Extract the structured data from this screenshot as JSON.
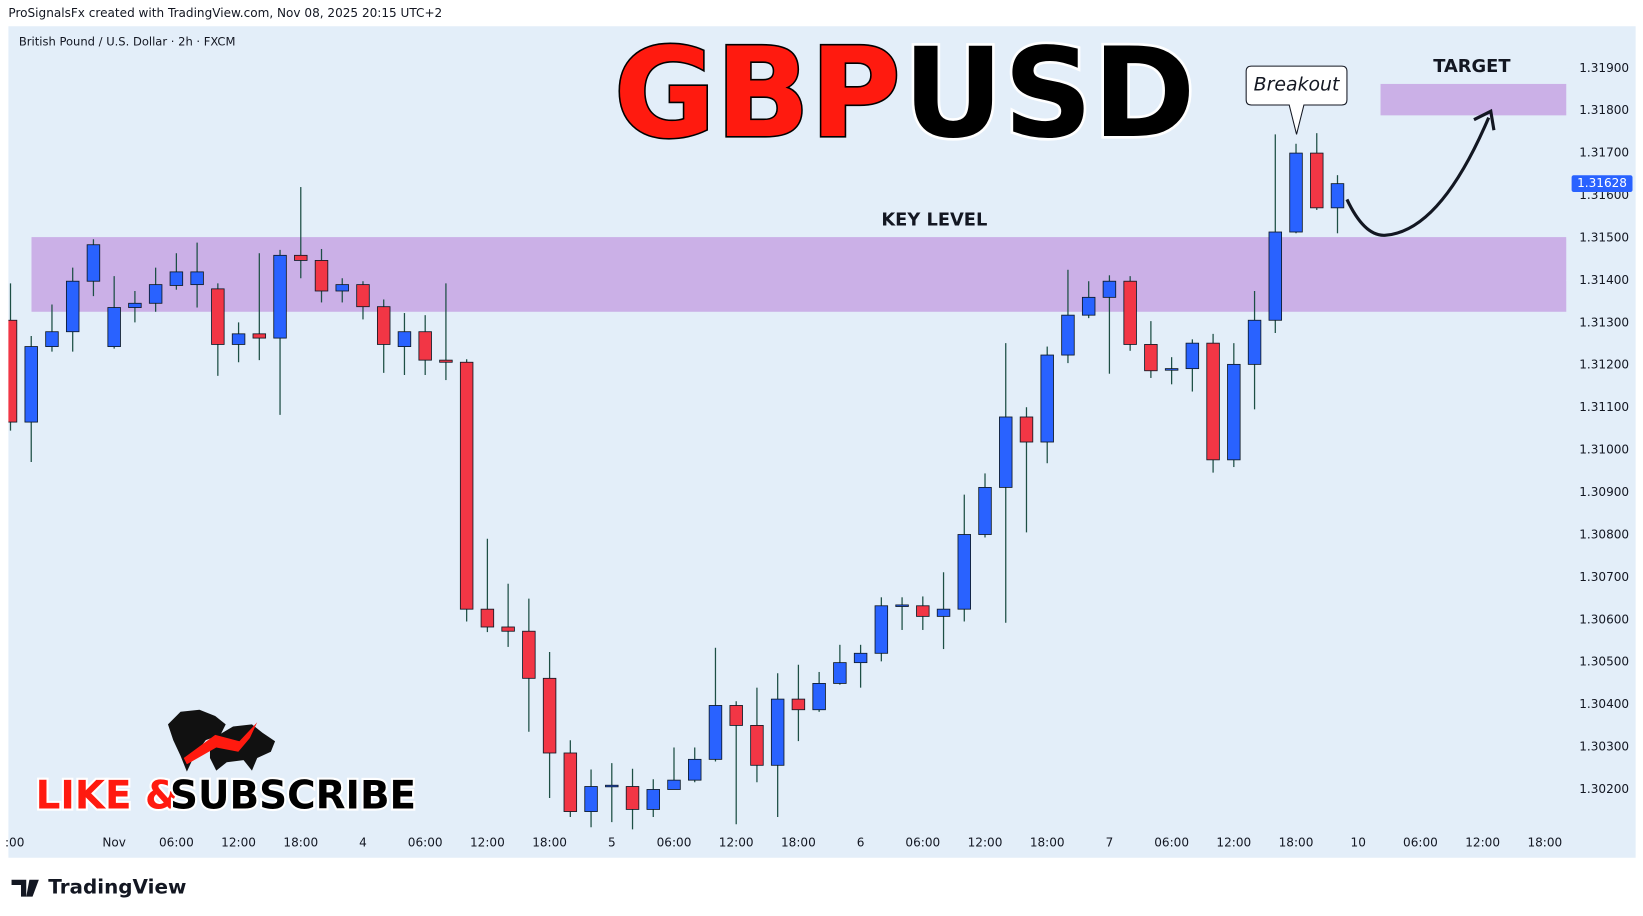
{
  "header": "ProSignalsFx created with TradingView.com, Nov 08, 2025 20:15 UTC+2",
  "footer": "TradingView",
  "chart_data": {
    "type": "candlestick",
    "symbol": "British Pound / U.S. Dollar · 2h · FXCM",
    "title_left": "GBP",
    "title_right": "USD",
    "callout": "Breakout",
    "subscribe_left": "LIKE &",
    "subscribe_right": "SUBSCRIBE",
    "up_color": "#2962ff",
    "down_color": "#f23645",
    "wick_color": "#1d4f45",
    "grid": false,
    "ylim": [
      1.301,
      1.32
    ],
    "yticks": [
      {
        "value": 1.302,
        "label": "1.30200"
      },
      {
        "value": 1.303,
        "label": "1.30300"
      },
      {
        "value": 1.304,
        "label": "1.30400"
      },
      {
        "value": 1.305,
        "label": "1.30500"
      },
      {
        "value": 1.306,
        "label": "1.30600"
      },
      {
        "value": 1.307,
        "label": "1.30700"
      },
      {
        "value": 1.308,
        "label": "1.30800"
      },
      {
        "value": 1.309,
        "label": "1.30900"
      },
      {
        "value": 1.31,
        "label": "1.31000"
      },
      {
        "value": 1.311,
        "label": "1.31100"
      },
      {
        "value": 1.312,
        "label": "1.31200"
      },
      {
        "value": 1.313,
        "label": "1.31300"
      },
      {
        "value": 1.314,
        "label": "1.31400"
      },
      {
        "value": 1.315,
        "label": "1.31500"
      },
      {
        "value": 1.316,
        "label": "1.31600"
      },
      {
        "value": 1.317,
        "label": "1.31700"
      },
      {
        "value": 1.318,
        "label": "1.31800"
      },
      {
        "value": 1.319,
        "label": "1.31900"
      }
    ],
    "categories": [
      ":00",
      null,
      null,
      null,
      null,
      "Nov",
      null,
      null,
      "06:00",
      null,
      null,
      "12:00",
      null,
      null,
      "18:00",
      null,
      null,
      "4",
      null,
      null,
      "06:00",
      null,
      null,
      "12:00",
      null,
      null,
      "18:00",
      null,
      null,
      "5",
      null,
      null,
      "06:00",
      null,
      null,
      "12:00",
      null,
      null,
      "18:00",
      null,
      null,
      "6",
      null,
      null,
      "06:00",
      null,
      null,
      "12:00",
      null,
      null,
      "18:00",
      null,
      null,
      "7",
      null,
      null,
      "06:00",
      null,
      null,
      "12:00",
      null,
      null,
      "18:00",
      null,
      null,
      "10",
      null,
      null,
      "06:00",
      null,
      null,
      "12:00",
      null,
      null,
      "18:00",
      null
    ],
    "open": [
      1.31306,
      1.31066,
      1.31244,
      1.31279,
      1.31398,
      1.31244,
      1.31336,
      1.31346,
      1.31388,
      1.3139,
      1.3138,
      1.31249,
      1.31274,
      1.31264,
      1.31459,
      1.31447,
      1.31375,
      1.3139,
      1.31338,
      1.31244,
      1.31279,
      1.31212,
      1.31207,
      1.30625,
      1.30583,
      1.30573,
      1.30462,
      1.30286,
      1.30148,
      1.30207,
      1.30207,
      1.30153,
      1.302,
      1.30222,
      1.30271,
      1.30398,
      1.30351,
      1.30257,
      1.30413,
      1.30388,
      1.3045,
      1.30499,
      1.30521,
      1.30633,
      1.30633,
      1.30608,
      1.30625,
      1.30801,
      1.30912,
      1.31078,
      1.31019,
      1.31224,
      1.31318,
      1.3136,
      1.31398,
      1.31249,
      1.3119,
      1.31192,
      1.31252,
      1.30977,
      1.31202,
      1.31306,
      1.31514,
      1.317,
      1.31571,
      null,
      null,
      null,
      null,
      null,
      null,
      null,
      null,
      null,
      null,
      null
    ],
    "high": [
      1.31393,
      1.31269,
      1.31343,
      1.3143,
      1.31497,
      1.3141,
      1.31375,
      1.3143,
      1.31464,
      1.31489,
      1.31393,
      1.31301,
      1.31464,
      1.31472,
      1.3162,
      1.31474,
      1.31405,
      1.31398,
      1.31355,
      1.31323,
      1.31318,
      1.31393,
      1.31214,
      1.30791,
      1.30685,
      1.3065,
      1.30524,
      1.30316,
      1.30247,
      1.30262,
      1.30249,
      1.30224,
      1.30299,
      1.30299,
      1.30534,
      1.30408,
      1.3044,
      1.30474,
      1.30494,
      1.30477,
      1.30541,
      1.30541,
      1.30653,
      1.30653,
      1.30655,
      1.30712,
      1.30895,
      1.30945,
      1.31252,
      1.31101,
      1.31244,
      1.31425,
      1.31398,
      1.31412,
      1.3141,
      1.31304,
      1.31219,
      1.31261,
      1.31274,
      1.31252,
      1.31375,
      1.31744,
      1.31722,
      1.31747,
      1.31648,
      null,
      null,
      null,
      null,
      null,
      null,
      null,
      null,
      null,
      null,
      null
    ],
    "low": [
      1.31046,
      1.30972,
      1.31232,
      1.31232,
      1.31363,
      1.31239,
      1.31301,
      1.31326,
      1.31378,
      1.31336,
      1.31175,
      1.31207,
      1.31212,
      1.31083,
      1.31405,
      1.31348,
      1.31348,
      1.31308,
      1.31182,
      1.31177,
      1.31177,
      1.31165,
      1.30596,
      1.30571,
      1.30536,
      1.30336,
      1.3018,
      1.30135,
      1.30111,
      1.30123,
      1.30106,
      1.30135,
      1.302,
      1.30217,
      1.30266,
      1.30118,
      1.30217,
      1.30135,
      1.30314,
      1.30383,
      1.30447,
      1.3044,
      1.30502,
      1.30576,
      1.30576,
      1.30531,
      1.30596,
      1.30794,
      1.30593,
      1.30806,
      1.30969,
      1.31205,
      1.31311,
      1.3118,
      1.31234,
      1.3117,
      1.31155,
      1.31138,
      1.30947,
      1.3096,
      1.31096,
      1.31276,
      1.31511,
      1.31566,
      1.31511,
      null,
      null,
      null,
      null,
      null,
      null,
      null,
      null,
      null,
      null,
      null
    ],
    "close": [
      1.31066,
      1.31244,
      1.31279,
      1.31398,
      1.31484,
      1.31336,
      1.31346,
      1.3139,
      1.3142,
      1.3142,
      1.31249,
      1.31274,
      1.31264,
      1.31459,
      1.31447,
      1.31375,
      1.3139,
      1.31338,
      1.31249,
      1.31279,
      1.31212,
      1.31207,
      1.30625,
      1.30583,
      1.30573,
      1.30462,
      1.30286,
      1.30148,
      1.30207,
      1.3021,
      1.30153,
      1.302,
      1.30222,
      1.30271,
      1.30398,
      1.30351,
      1.30257,
      1.30413,
      1.30388,
      1.3045,
      1.30499,
      1.30521,
      1.30633,
      1.30635,
      1.30608,
      1.30625,
      1.30801,
      1.30912,
      1.31078,
      1.31019,
      1.31224,
      1.31318,
      1.3136,
      1.31398,
      1.31249,
      1.31187,
      1.31192,
      1.31252,
      1.30977,
      1.31202,
      1.31306,
      1.31514,
      1.317,
      1.31571,
      1.31628,
      null,
      null,
      null,
      null,
      null,
      null,
      null,
      null,
      null,
      null,
      null
    ],
    "zones": [
      {
        "label": "KEY LEVEL",
        "range": [
          1.31326,
          1.31502
        ],
        "color": "#c8a8e4"
      },
      {
        "label": "TARGET",
        "range": [
          1.31789,
          1.31863
        ],
        "color": "#c8a8e4"
      }
    ]
  }
}
